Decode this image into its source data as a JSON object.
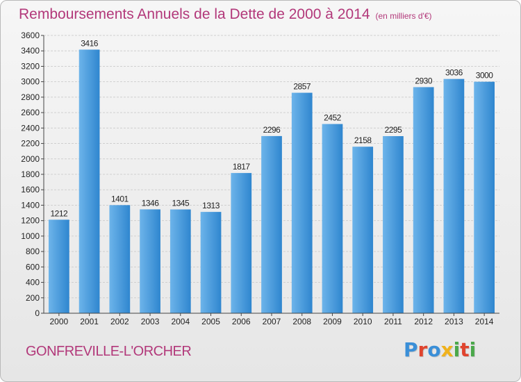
{
  "header": {
    "title": "Remboursements Annuels de la Dette de 2000 à 2014",
    "unit": "(en milliers d'€)"
  },
  "footer": {
    "commune": "GONFREVILLE-L'ORCHER",
    "logo_letters": [
      "P",
      "r",
      "o",
      "x",
      "i",
      "t",
      "i"
    ],
    "logo_colors": [
      "#3a8fd8",
      "#e0442e",
      "#3a8fd8",
      "#f0b21c",
      "#4aa84a",
      "#e0442e",
      "#4aa84a"
    ]
  },
  "colors": {
    "title": "#b2387a",
    "bar_light": "#6db4ea",
    "bar_dark": "#2f86cf",
    "grid": "#cfcfcf",
    "axis": "#444444"
  },
  "chart_data": {
    "type": "bar",
    "title": "Remboursements Annuels de la Dette de 2000 à 2014",
    "xlabel": "",
    "ylabel": "",
    "ylim": [
      0,
      3600
    ],
    "ytick_step": 200,
    "grid": true,
    "categories": [
      "2000",
      "2001",
      "2002",
      "2003",
      "2004",
      "2005",
      "2006",
      "2007",
      "2008",
      "2009",
      "2010",
      "2011",
      "2012",
      "2013",
      "2014"
    ],
    "values": [
      1212,
      3416,
      1401,
      1346,
      1345,
      1313,
      1817,
      2296,
      2857,
      2452,
      2158,
      2295,
      2930,
      3036,
      3000
    ]
  }
}
